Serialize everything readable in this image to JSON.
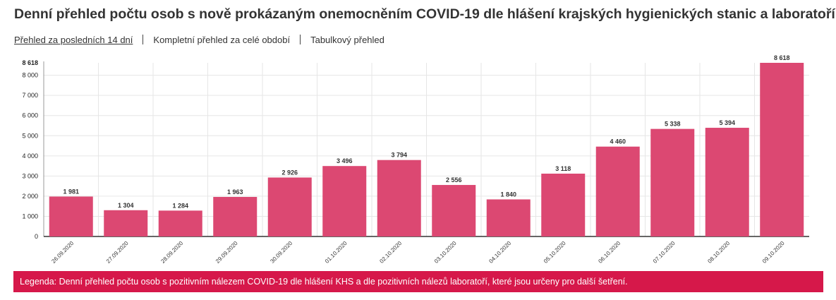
{
  "title": "Denní přehled počtu osob s nově prokázaným onemocněním COVID-19 dle hlášení krajských hygienických stanic a laboratoří",
  "tabs": [
    {
      "label": "Přehled za posledních 14 dní",
      "active": true
    },
    {
      "label": "Kompletní přehled za celé období",
      "active": false
    },
    {
      "label": "Tabulkový přehled",
      "active": false
    }
  ],
  "legend": "Legenda: Denní přehled počtu osob s pozitivním nálezem COVID-19 dle hlášení KHS a dle pozitivních nálezů laboratoří, které jsou určeny pro další šetření.",
  "colors": {
    "bar": "#dc4872",
    "legend_bg": "#d6184a",
    "grid": "#e6e6e6"
  },
  "chart_data": {
    "type": "bar",
    "categories": [
      "26.09.2020",
      "27.09.2020",
      "28.09.2020",
      "29.09.2020",
      "30.09.2020",
      "01.10.2020",
      "02.10.2020",
      "03.10.2020",
      "04.10.2020",
      "05.10.2020",
      "06.10.2020",
      "07.10.2020",
      "08.10.2020",
      "09.10.2020"
    ],
    "values": [
      1981,
      1304,
      1284,
      1963,
      2926,
      3496,
      3794,
      2556,
      1840,
      3118,
      4460,
      5338,
      5394,
      8618
    ],
    "value_labels": [
      "1 981",
      "1 304",
      "1 284",
      "1 963",
      "2 926",
      "3 496",
      "3 794",
      "2 556",
      "1 840",
      "3 118",
      "4 460",
      "5 338",
      "5 394",
      "8 618"
    ],
    "y_ticks": [
      0,
      1000,
      2000,
      3000,
      4000,
      5000,
      6000,
      7000,
      8000
    ],
    "y_tick_labels": [
      "0",
      "1 000",
      "2 000",
      "3 000",
      "4 000",
      "5 000",
      "6 000",
      "7 000",
      "8 000"
    ],
    "y_max_label": "8 618",
    "ylim": [
      0,
      8618
    ],
    "grid": true,
    "title": "",
    "xlabel": "",
    "ylabel": ""
  }
}
